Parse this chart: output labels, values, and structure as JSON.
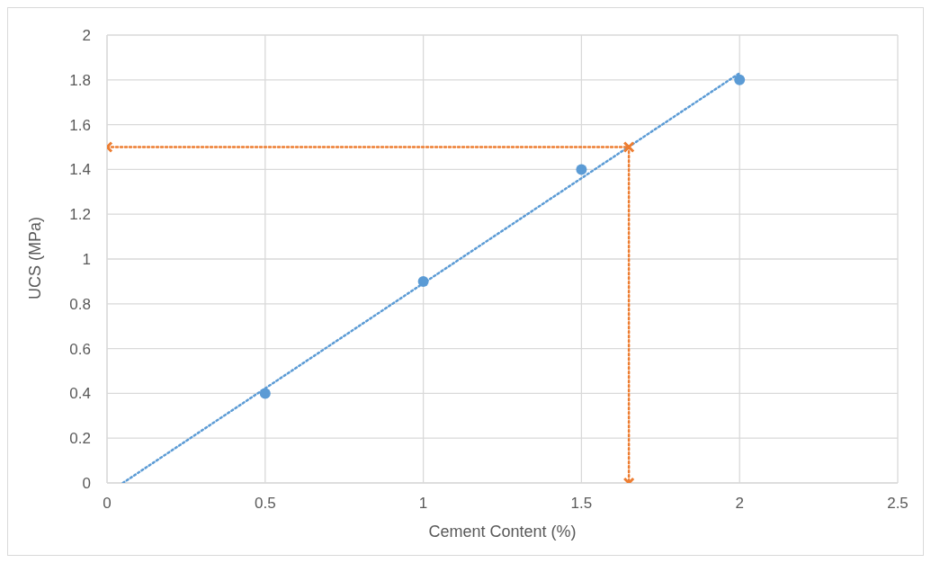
{
  "chart_data": {
    "type": "scatter",
    "xlabel": "Cement Content (%)",
    "ylabel": "UCS (MPa)",
    "series": [
      {
        "color": "#5b9bd5",
        "x": [
          0.5,
          1,
          1.5,
          2
        ],
        "values": [
          0.4,
          0.9,
          1.4,
          1.8
        ],
        "marker": "circle"
      },
      {
        "type": "line",
        "color": "#5b9bd5",
        "x": [
          0.05,
          2
        ],
        "values": [
          0,
          1.83
        ],
        "marker": "none",
        "line_style": "dotted"
      },
      {
        "type": "line",
        "color": "#ed7d31",
        "x": [
          0,
          1.65,
          1.65
        ],
        "values": [
          1.5,
          1.5,
          0
        ],
        "marker": "cross",
        "line_style": "dotted"
      }
    ],
    "xlim": [
      0,
      2.5
    ],
    "xticks": [
      0,
      0.5,
      1,
      1.5,
      2,
      2.5
    ],
    "ylim": [
      0,
      2
    ],
    "yticks": [
      0,
      0.2,
      0.4,
      0.6,
      0.8,
      1,
      1.2,
      1.4,
      1.6,
      1.8,
      2
    ],
    "grid": true
  }
}
